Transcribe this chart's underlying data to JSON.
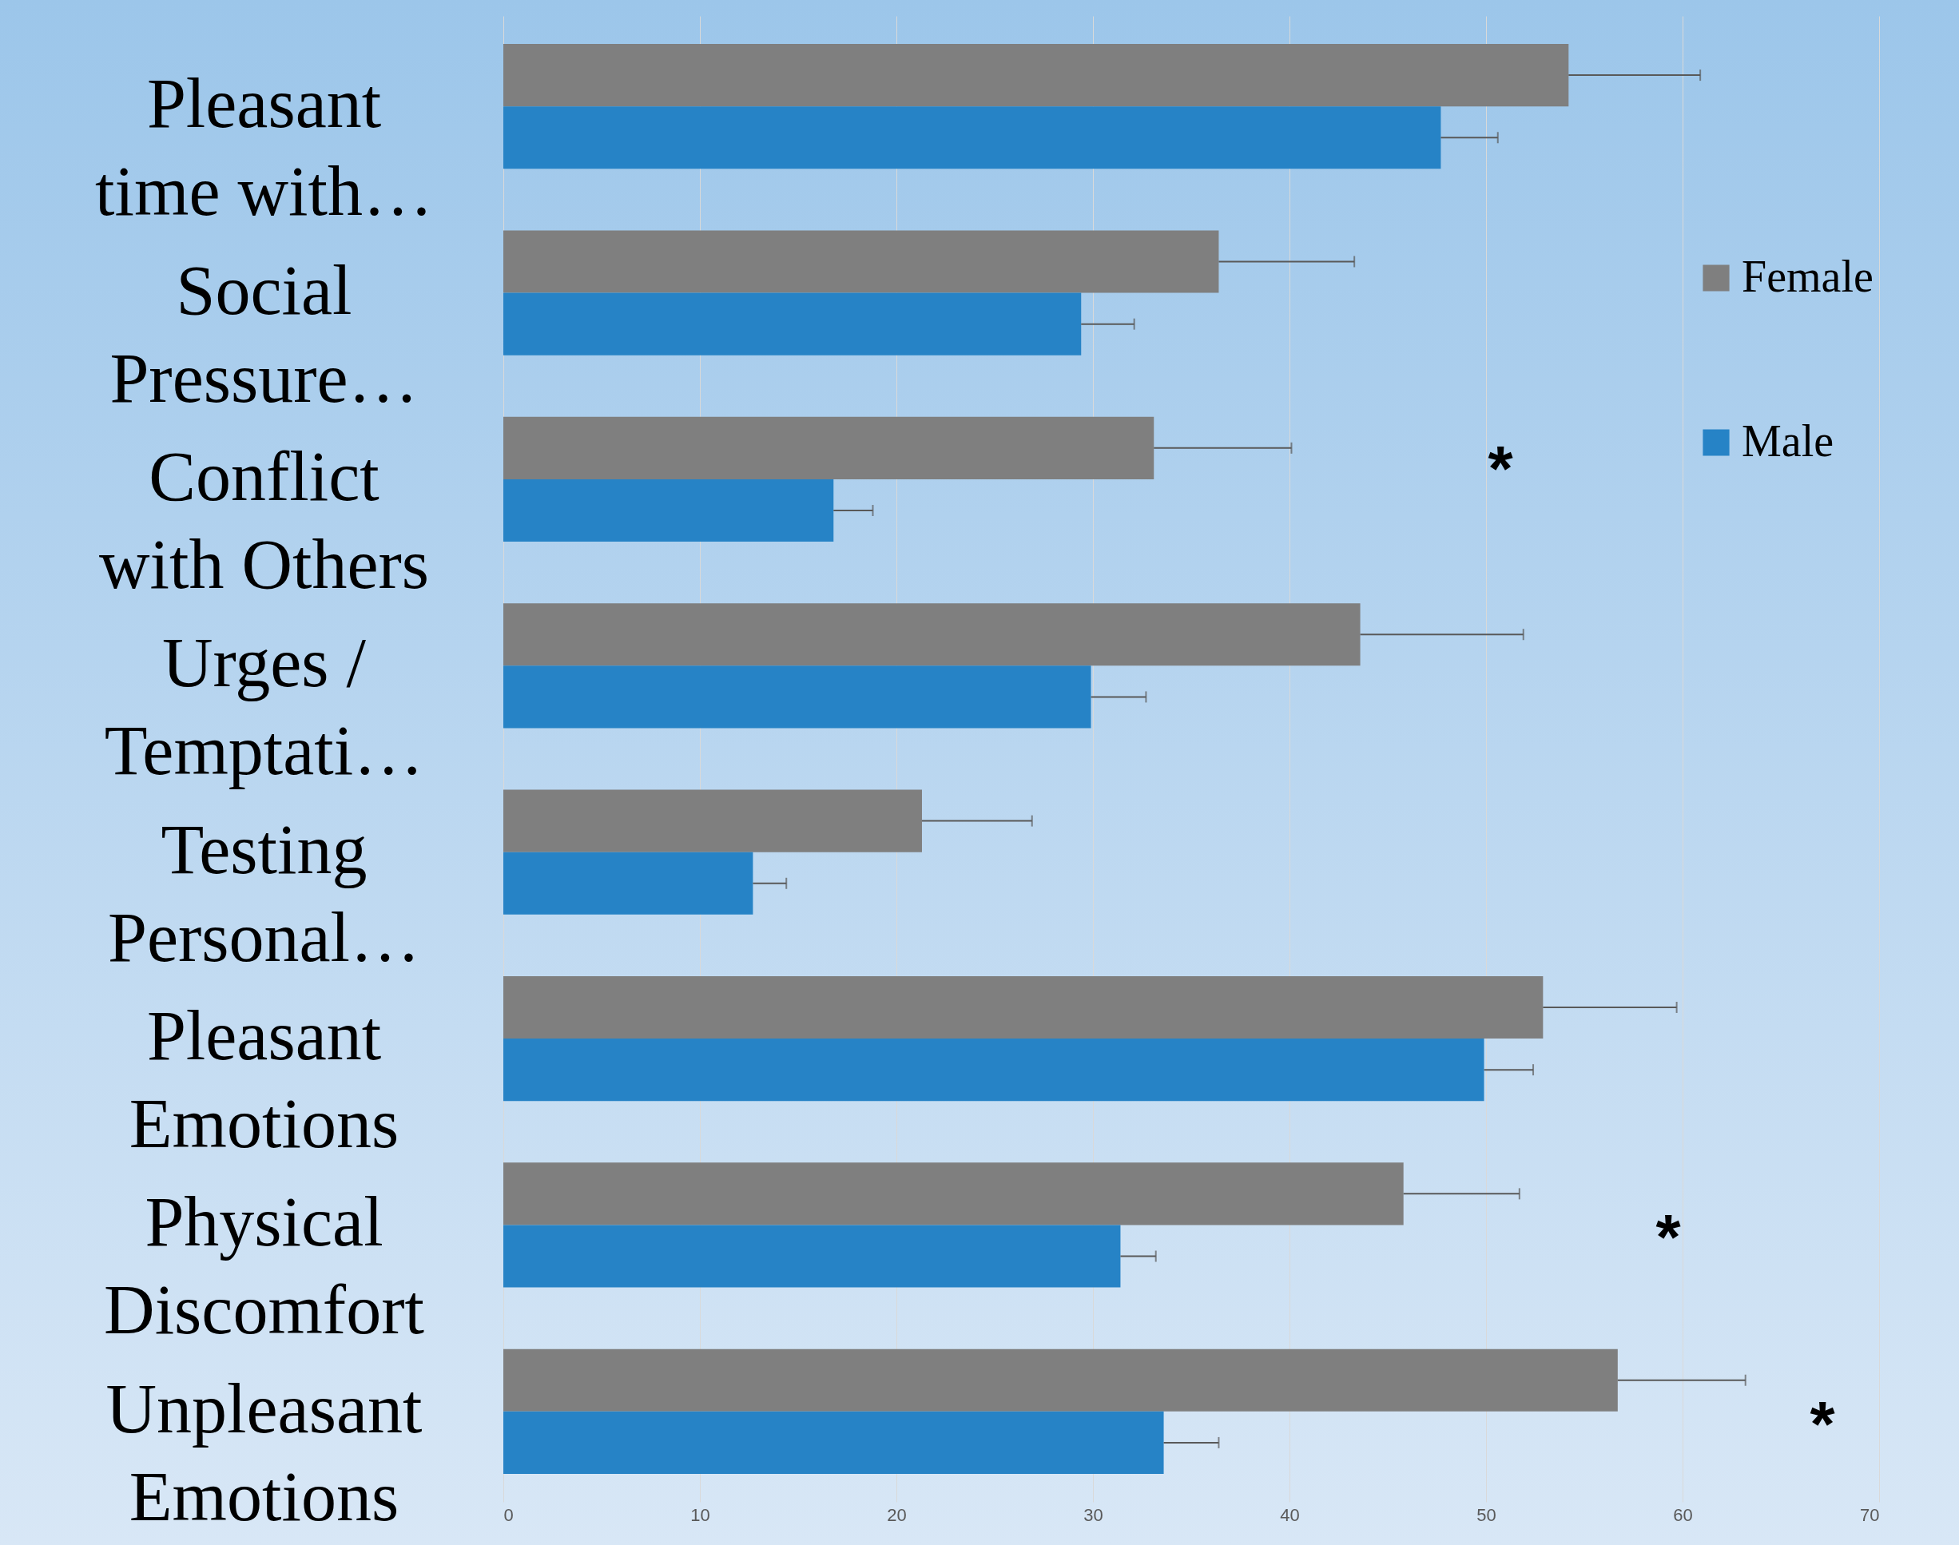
{
  "chart_data": {
    "type": "bar",
    "orientation": "horizontal",
    "categories": [
      "Pleasant time with…",
      "Social Pressure…",
      "Conflict with Others",
      "Urges / Temptati…",
      "Testing Personal…",
      "Pleasant Emotions",
      "Physical Discomfort",
      "Unpleasant Emotions"
    ],
    "series": [
      {
        "name": "Female",
        "color": "#7f7f7f",
        "values": [
          54.2,
          36.4,
          33.1,
          43.6,
          21.3,
          52.9,
          45.8,
          56.7
        ],
        "errors": [
          [
            54.2,
            60.9
          ],
          [
            36.4,
            43.3
          ],
          [
            33.1,
            40.1
          ],
          [
            43.6,
            51.9
          ],
          [
            21.3,
            26.9
          ],
          [
            52.9,
            59.7
          ],
          [
            45.8,
            51.7
          ],
          [
            56.7,
            63.2
          ]
        ]
      },
      {
        "name": "Male",
        "color": "#2683c6",
        "values": [
          47.7,
          29.4,
          16.8,
          29.9,
          12.7,
          49.9,
          31.4,
          33.6
        ],
        "errors": [
          [
            47.7,
            50.6
          ],
          [
            29.4,
            32.1
          ],
          [
            16.8,
            18.8
          ],
          [
            29.9,
            32.7
          ],
          [
            12.7,
            14.4
          ],
          [
            49.9,
            52.4
          ],
          [
            31.4,
            33.2
          ],
          [
            33.6,
            36.4
          ]
        ]
      }
    ],
    "xlim": [
      0,
      70
    ],
    "xticks": [
      0,
      10,
      20,
      30,
      40,
      50,
      60,
      70
    ],
    "grid": "x",
    "legend": "right",
    "annotations": [
      "*",
      "*",
      "*"
    ]
  }
}
